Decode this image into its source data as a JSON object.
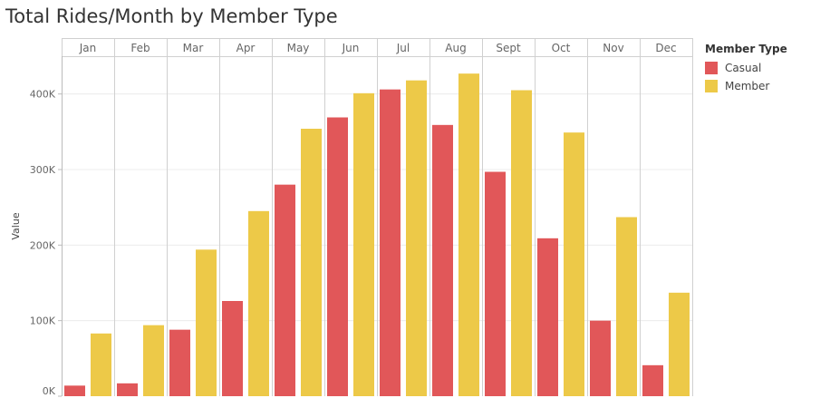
{
  "chart_data": {
    "type": "bar",
    "title": "Total Rides/Month by Member Type",
    "ylabel": "Value",
    "xlabel": "",
    "categories": [
      "Jan",
      "Feb",
      "Mar",
      "Apr",
      "May",
      "Jun",
      "Jul",
      "Aug",
      "Sept",
      "Oct",
      "Nov",
      "Dec"
    ],
    "series": [
      {
        "name": "Casual",
        "color": "#e15759",
        "values": [
          14000,
          17000,
          88000,
          126000,
          280000,
          369000,
          406000,
          359000,
          297000,
          209000,
          100000,
          41000
        ]
      },
      {
        "name": "Member",
        "color": "#edc948",
        "values": [
          83000,
          94000,
          194000,
          245000,
          354000,
          401000,
          418000,
          427000,
          405000,
          349000,
          237000,
          137000
        ]
      }
    ],
    "ylim": [
      0,
      450000
    ],
    "yticks": [
      0,
      100000,
      200000,
      300000,
      400000
    ],
    "ytick_labels": [
      "0K",
      "100K",
      "200K",
      "300K",
      "400K"
    ],
    "legend": {
      "title": "Member Type",
      "position": "right"
    },
    "grid": true
  }
}
